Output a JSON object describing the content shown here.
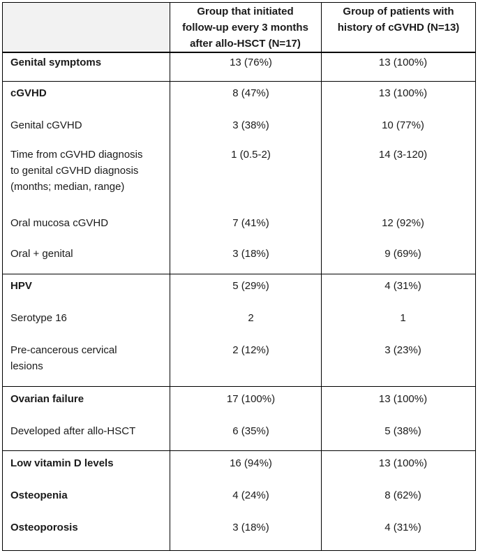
{
  "table": {
    "headers": {
      "col1": "",
      "col2_lines": [
        "Group that initiated",
        "follow-up every 3 months",
        "after allo-HSCT (N=17)"
      ],
      "col3_lines": [
        "Group of patients with",
        "history of cGVHD (N=13)"
      ]
    },
    "rows": [
      {
        "label_lines": [
          "Genital symptoms"
        ],
        "bold": true,
        "v1": "13 (76%)",
        "v2": "13 (100%)"
      },
      {
        "label_lines": [
          "cGVHD"
        ],
        "bold": true,
        "v1": "8 (47%)",
        "v2": "13 (100%)"
      },
      {
        "label_lines": [
          "Genital cGVHD"
        ],
        "bold": false,
        "v1": "3 (38%)",
        "v2": "10 (77%)"
      },
      {
        "label_lines": [
          "Time from cGVHD diagnosis",
          "to genital cGVHD diagnosis",
          "(months; median, range)"
        ],
        "bold": false,
        "v1": "1 (0.5-2)",
        "v2": "14 (3-120)"
      },
      {
        "label_lines": [
          "Oral mucosa cGVHD"
        ],
        "bold": false,
        "v1": "7 (41%)",
        "v2": "12 (92%)"
      },
      {
        "label_lines": [
          "Oral + genital"
        ],
        "bold": false,
        "v1": "3 (18%)",
        "v2": "9 (69%)"
      },
      {
        "label_lines": [
          "HPV"
        ],
        "bold": true,
        "v1": "5 (29%)",
        "v2": "4 (31%)"
      },
      {
        "label_lines": [
          "Serotype 16"
        ],
        "bold": false,
        "v1": "2",
        "v2": "1"
      },
      {
        "label_lines": [
          "Pre-cancerous cervical",
          "lesions"
        ],
        "bold": false,
        "v1": "2 (12%)",
        "v2": "3 (23%)"
      },
      {
        "label_lines": [
          "Ovarian failure"
        ],
        "bold": true,
        "v1": "17 (100%)",
        "v2": "13 (100%)"
      },
      {
        "label_lines": [
          "Developed after allo-HSCT"
        ],
        "bold": false,
        "v1": "6 (35%)",
        "v2": "5 (38%)"
      },
      {
        "label_lines": [
          "Low vitamin D levels"
        ],
        "bold": true,
        "v1": "16 (94%)",
        "v2": "13 (100%)"
      },
      {
        "label_lines": [
          "Osteopenia"
        ],
        "bold": true,
        "v1": "4 (24%)",
        "v2": "8 (62%)"
      },
      {
        "label_lines": [
          "Osteoporosis"
        ],
        "bold": true,
        "v1": "3 (18%)",
        "v2": "4 (31%)"
      }
    ]
  }
}
